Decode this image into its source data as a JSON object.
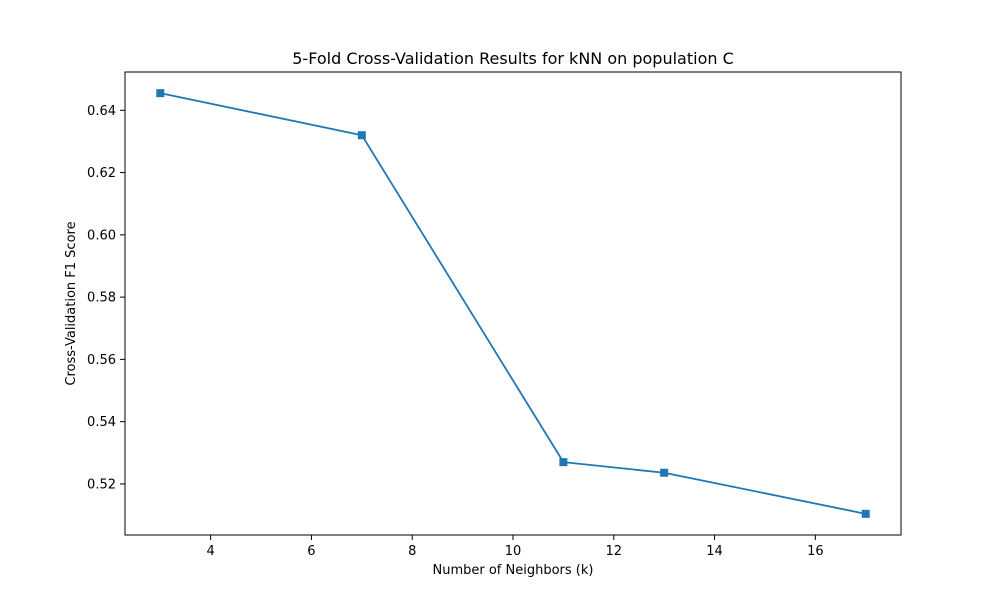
{
  "chart_data": {
    "type": "line",
    "title": "5-Fold Cross-Validation Results for kNN on population C",
    "xlabel": "Number of Neighbors (k)",
    "ylabel": "Cross-Validation F1 Score",
    "xlim": [
      2.3,
      17.7
    ],
    "ylim": [
      0.5036,
      0.6523
    ],
    "xticks": [
      4,
      6,
      8,
      10,
      12,
      14,
      16
    ],
    "xtick_labels": [
      "4",
      "6",
      "8",
      "10",
      "12",
      "14",
      "16"
    ],
    "yticks": [
      0.52,
      0.54,
      0.56,
      0.58,
      0.6,
      0.62,
      0.64
    ],
    "ytick_labels": [
      "0.52",
      "0.54",
      "0.56",
      "0.58",
      "0.60",
      "0.62",
      "0.64"
    ],
    "grid": false,
    "series": [
      {
        "color": "#1f77b4",
        "marker": "square",
        "x": [
          3,
          7,
          11,
          13,
          17
        ],
        "y": [
          0.6455,
          0.632,
          0.527,
          0.5236,
          0.5104
        ]
      }
    ]
  }
}
